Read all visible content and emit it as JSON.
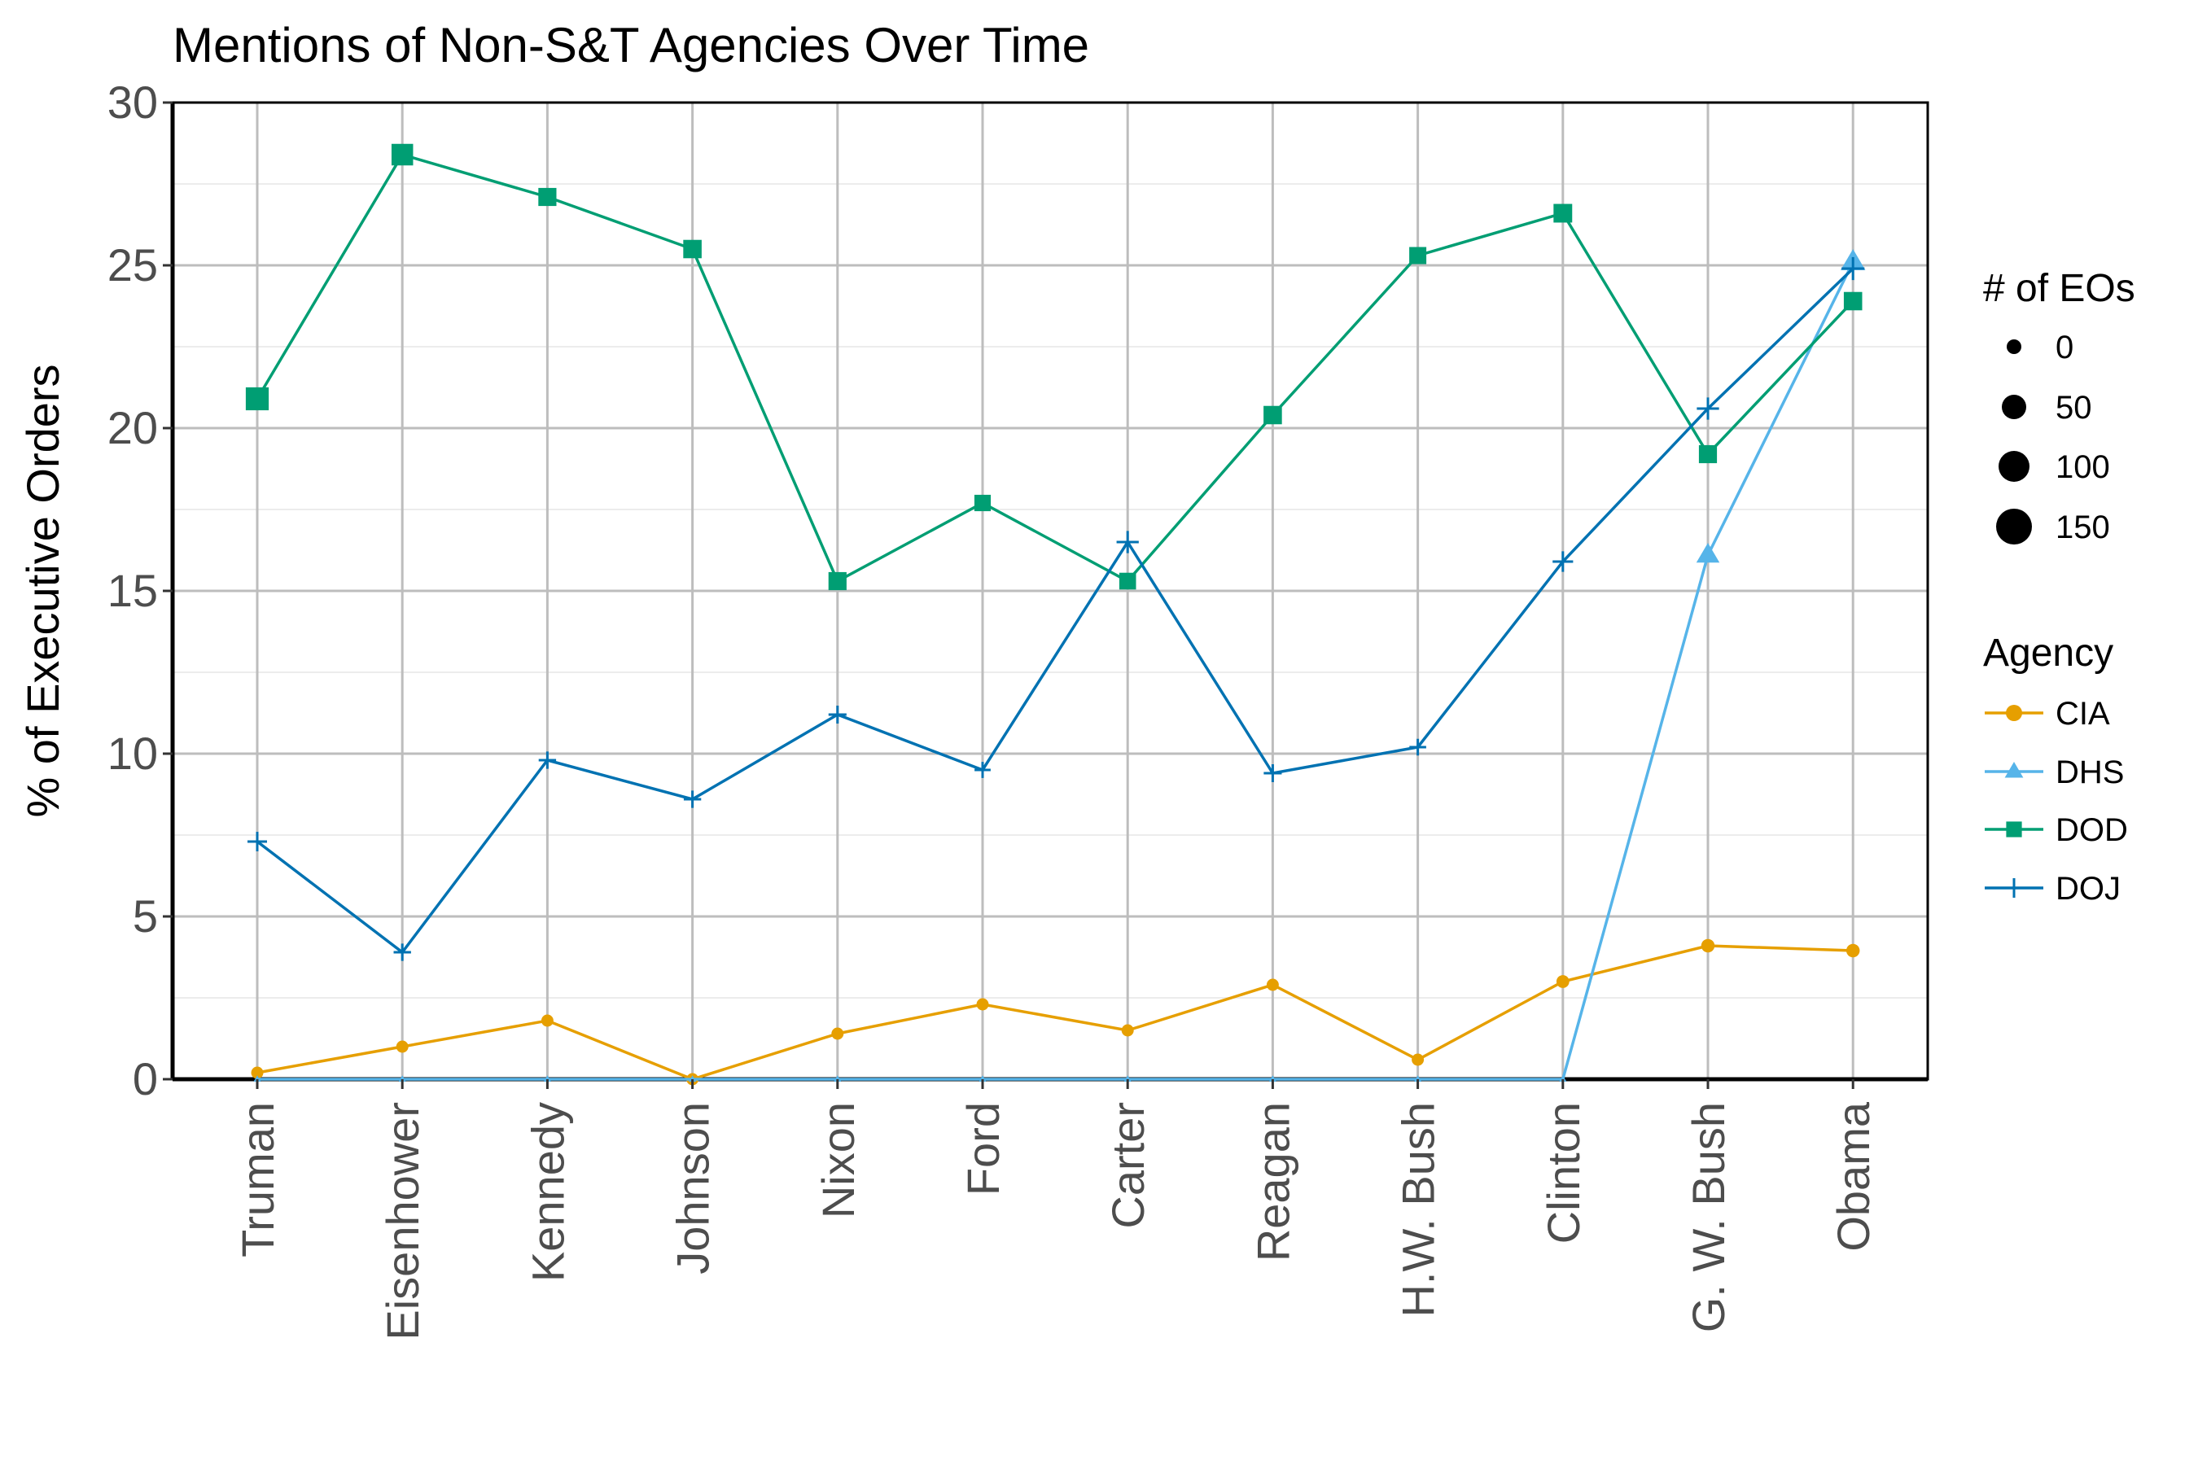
{
  "chart_data": {
    "type": "line",
    "title": "Mentions of Non-S&T Agencies Over Time",
    "xlabel": "",
    "ylabel": "% of Executive Orders",
    "categories": [
      "Truman",
      "Eisenhower",
      "Kennedy",
      "Johnson",
      "Nixon",
      "Ford",
      "Carter",
      "Reagan",
      "H.W. Bush",
      "Clinton",
      "G. W. Bush",
      "Obama"
    ],
    "ylim": [
      0,
      30
    ],
    "yticks": [
      "0",
      "5",
      "10",
      "15",
      "20",
      "25",
      "30"
    ],
    "grid": true,
    "legend_position": "right",
    "series": [
      {
        "name": "CIA",
        "color": "#E69F00",
        "marker": "circle",
        "values": [
          0.2,
          1.0,
          1.8,
          0.0,
          1.4,
          2.3,
          1.5,
          2.9,
          0.6,
          3.0,
          4.1,
          3.95
        ],
        "eo_counts": [
          20,
          20,
          20,
          20,
          20,
          20,
          20,
          20,
          20,
          25,
          30,
          30
        ]
      },
      {
        "name": "DHS",
        "color": "#56B4E9",
        "marker": "triangle",
        "values": [
          0,
          0,
          0,
          0,
          0,
          0,
          0,
          0,
          0,
          0,
          16.1,
          25.1
        ],
        "eo_counts": [
          0,
          0,
          0,
          0,
          0,
          0,
          0,
          0,
          0,
          0,
          120,
          145
        ]
      },
      {
        "name": "DOD",
        "color": "#009E73",
        "marker": "square",
        "values": [
          20.9,
          28.4,
          27.1,
          25.5,
          15.3,
          17.7,
          15.3,
          20.4,
          25.3,
          26.6,
          19.2,
          23.9
        ],
        "eo_counts": [
          190,
          160,
          95,
          100,
          95,
          70,
          75,
          100,
          80,
          105,
          95,
          100
        ]
      },
      {
        "name": "DOJ",
        "color": "#0072B2",
        "marker": "cross",
        "values": [
          7.3,
          3.9,
          9.8,
          8.6,
          11.2,
          9.5,
          16.5,
          9.4,
          10.2,
          15.9,
          20.6,
          24.9
        ],
        "eo_counts": [
          60,
          40,
          40,
          40,
          45,
          30,
          90,
          45,
          35,
          70,
          90,
          100
        ]
      }
    ]
  },
  "legend": {
    "size_title": "# of EOs",
    "size_labels": [
      "0",
      "50",
      "100",
      "150"
    ],
    "color_title": "Agency"
  }
}
